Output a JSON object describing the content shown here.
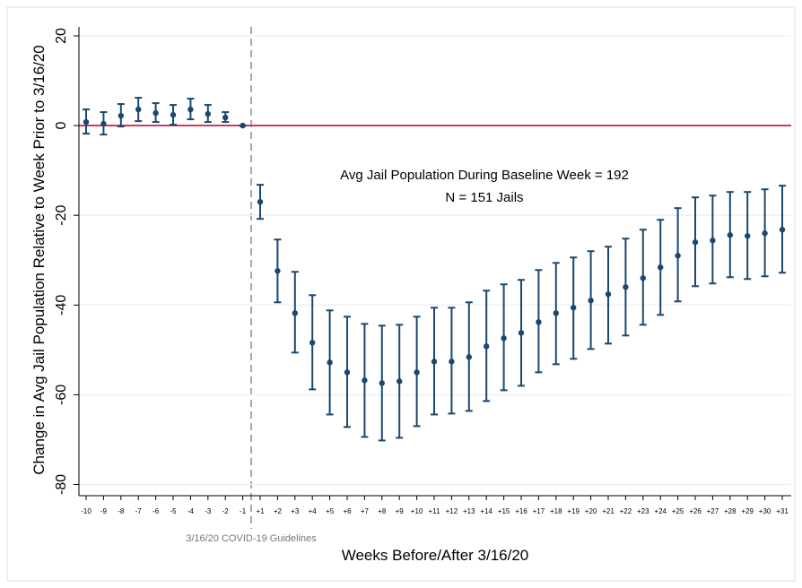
{
  "chart_data": {
    "type": "errorbar",
    "annotations": [
      "Avg Jail Population During Baseline Week = 192",
      "N = 151 Jails"
    ],
    "event_label": "3/16/20 COVID-19 Guidelines",
    "x_label": "Weeks Before/After 3/16/20",
    "y_label": "Change in Avg Jail Population Relative to Week Prior to 3/16/20",
    "categories": [
      "-10",
      "-9",
      "-8",
      "-7",
      "-6",
      "-5",
      "-4",
      "-3",
      "-2",
      "-1",
      "+1",
      "+2",
      "+3",
      "+4",
      "+5",
      "+6",
      "+7",
      "+8",
      "+9",
      "+10",
      "+11",
      "+12",
      "+13",
      "+14",
      "+15",
      "+16",
      "+17",
      "+18",
      "+19",
      "+20",
      "+21",
      "+22",
      "+23",
      "+24",
      "+25",
      "+26",
      "+27",
      "+28",
      "+29",
      "+30",
      "+31"
    ],
    "series": [
      {
        "color": "#1a476f",
        "values": [
          0.8,
          0.4,
          2.2,
          3.6,
          2.8,
          2.4,
          3.6,
          2.6,
          1.8,
          0,
          -17,
          -32.4,
          -41.8,
          -48.4,
          -52.8,
          -55,
          -56.8,
          -57.4,
          -57,
          -55,
          -52.6,
          -52.6,
          -51.6,
          -49.2,
          -47.4,
          -46.2,
          -43.8,
          -41.8,
          -40.6,
          -39,
          -37.6,
          -36,
          -34,
          -31.6,
          -29,
          -26,
          -25.6,
          -24.4,
          -24.6,
          -24,
          -23.2
        ],
        "ci_high": [
          3.6,
          3,
          4.8,
          6.2,
          5,
          4.6,
          6,
          4.6,
          3,
          0,
          -13.2,
          -25.4,
          -32.6,
          -37.8,
          -41.2,
          -42.6,
          -44.2,
          -44.6,
          -44.4,
          -42.6,
          -40.6,
          -40.6,
          -39.4,
          -36.8,
          -35.4,
          -34.4,
          -32.2,
          -30.6,
          -29.4,
          -28,
          -27,
          -25.2,
          -23.2,
          -21,
          -18.4,
          -16,
          -15.6,
          -14.8,
          -14.8,
          -14.2,
          -13.4
        ],
        "ci_low": [
          -1.8,
          -2,
          -0.2,
          1,
          0.8,
          0.2,
          1.4,
          0.8,
          0.8,
          0,
          -20.8,
          -39.4,
          -50.6,
          -58.8,
          -64.4,
          -67.2,
          -69.4,
          -70.2,
          -69.6,
          -67,
          -64.4,
          -64.2,
          -63.6,
          -61.4,
          -59,
          -58,
          -55,
          -53.2,
          -52,
          -49.8,
          -48.6,
          -46.8,
          -44.4,
          -42.2,
          -39.2,
          -35.8,
          -35.2,
          -33.8,
          -34.2,
          -33.6,
          -32.8
        ]
      }
    ],
    "reference_line": {
      "value": 0,
      "color": "#c8102e"
    },
    "ylim": [
      -82.5,
      22
    ],
    "yticks": [
      20,
      0,
      -20,
      -40,
      -60,
      -80
    ],
    "grid": true
  }
}
